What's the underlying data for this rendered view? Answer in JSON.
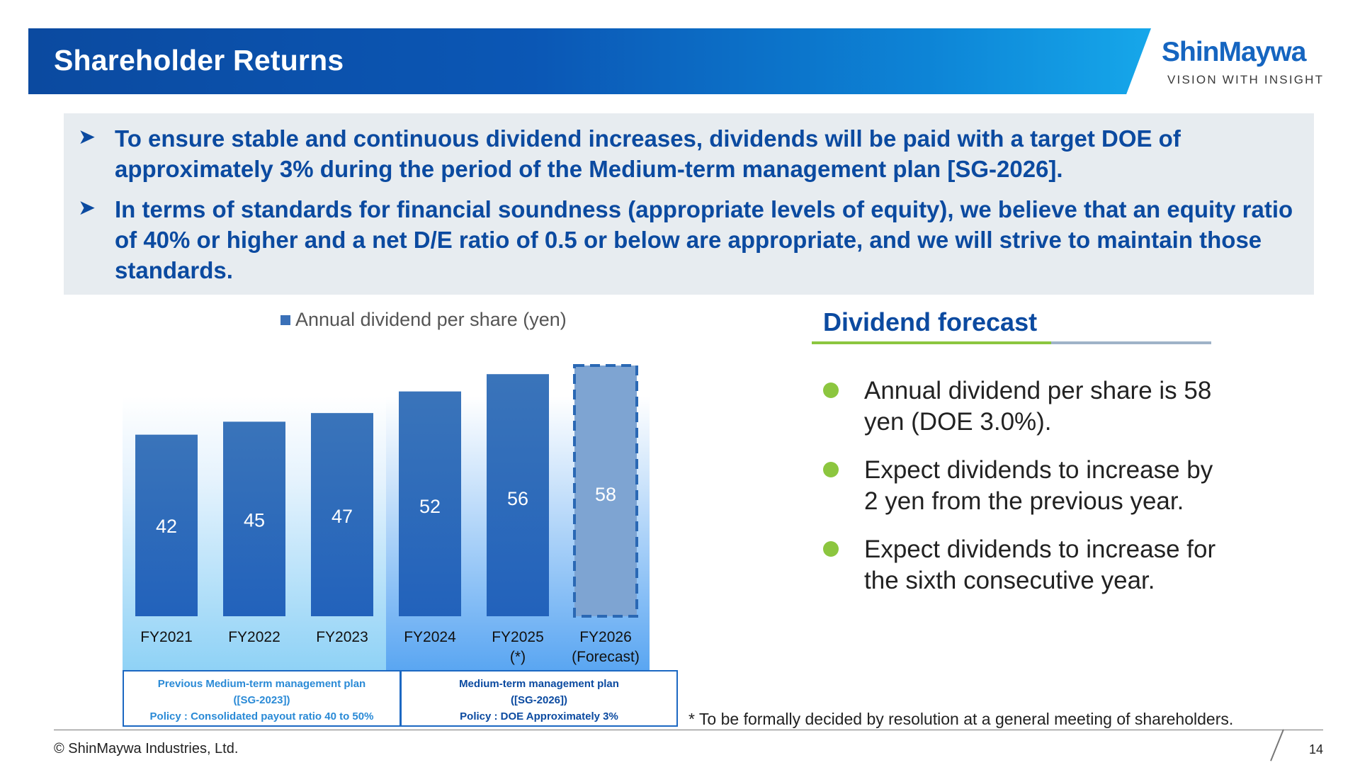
{
  "header": {
    "title": "Shareholder Returns",
    "logo_name": "ShinMaywa",
    "logo_tagline": "VISION WITH INSIGHT"
  },
  "bullets": [
    "To ensure stable and continuous dividend increases, dividends will be paid with a target DOE of approximately 3% during the period of the Medium-term management plan [SG-2026].",
    "In terms of standards for financial soundness (appropriate levels of equity), we believe that an equity ratio of 40% or higher and a net D/E ratio of 0.5 or below are appropriate, and we will strive to maintain those standards."
  ],
  "bullet_icon": "arrow-bullet-icon",
  "chart_data": {
    "type": "bar",
    "legend": "Annual dividend per share (yen)",
    "legend_position": "top",
    "categories": [
      [
        "FY2021"
      ],
      [
        "FY2022"
      ],
      [
        "FY2023"
      ],
      [
        "FY2024"
      ],
      [
        "FY2025",
        "(*)"
      ],
      [
        "FY2026",
        "(Forecast)"
      ]
    ],
    "series": [
      {
        "name": "Annual dividend per share (yen)",
        "values": [
          42,
          45,
          47,
          52,
          56,
          58
        ]
      }
    ],
    "forecast_index": 5,
    "ylim": [
      0,
      58
    ],
    "grid": false,
    "colors": {
      "bar": "#2f6eb8",
      "forecast_bar": "#7ea4d2",
      "forecast_border": "#2a68b4"
    }
  },
  "plans": [
    {
      "lines": [
        "Previous Medium-term management plan",
        "([SG-2023])",
        "Policy : Consolidated payout ratio 40 to 50%"
      ]
    },
    {
      "lines": [
        "Medium-term management plan",
        "([SG-2026])",
        "Policy : DOE Approximately 3%"
      ]
    }
  ],
  "forecast": {
    "title": "Dividend forecast",
    "items": [
      [
        "Annual dividend per share is 58",
        "yen (DOE 3.0%)."
      ],
      [
        "Expect dividends to increase by",
        "2 yen from the previous year."
      ],
      [
        "Expect dividends to increase for",
        "the sixth consecutive year."
      ]
    ]
  },
  "footnote": "* To be formally decided by resolution at a general meeting of shareholders.",
  "footer": {
    "copyright": "© ShinMaywa Industries, Ltd.",
    "page": "14"
  },
  "colors": {
    "brand_blue": "#0b4aa0",
    "accent_green": "#8cc63f",
    "box_gray": "#e7ecf0"
  }
}
